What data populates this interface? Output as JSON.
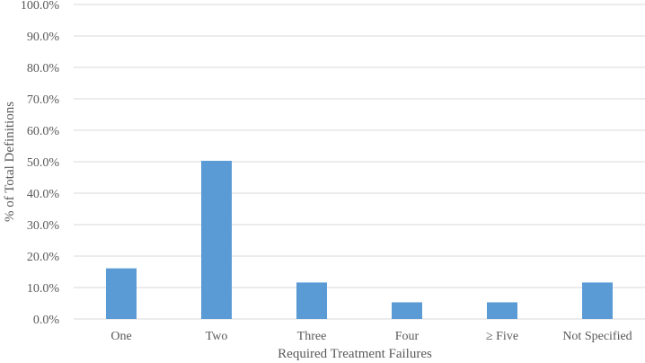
{
  "chart_data": {
    "type": "bar",
    "title": "",
    "xlabel": "Required Treatment Failures",
    "ylabel": "% of Total Definitions",
    "categories": [
      "One",
      "Two",
      "Three",
      "Four",
      "≥ Five",
      "Not Specified"
    ],
    "values": [
      16.1,
      50.3,
      11.6,
      5.3,
      5.3,
      11.6
    ],
    "ylim": [
      0,
      100
    ],
    "yticks": [
      0,
      10,
      20,
      30,
      40,
      50,
      60,
      70,
      80,
      90,
      100
    ],
    "ytick_labels": [
      "0.0%",
      "10.0%",
      "20.0%",
      "30.0%",
      "40.0%",
      "50.0%",
      "60.0%",
      "70.0%",
      "80.0%",
      "90.0%",
      "100.0%"
    ],
    "grid": true,
    "legend": "none",
    "colors": {
      "bar": "#5b9bd5",
      "grid": "#d9d9d9",
      "text": "#595959"
    }
  }
}
